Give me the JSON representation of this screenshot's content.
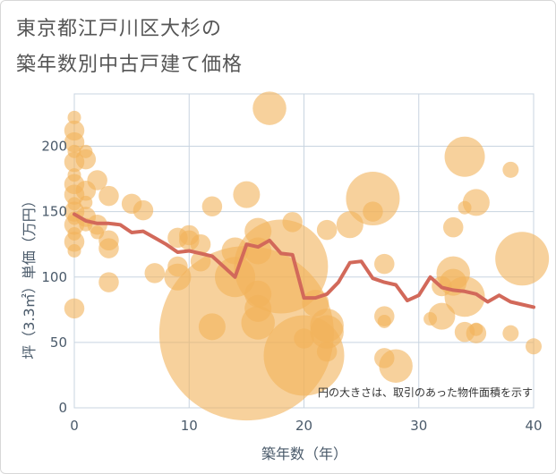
{
  "title_line1": "東京都江戸川区大杉の",
  "title_line2": "築年数別中古戸建て価格",
  "chart_data": {
    "type": "scatter",
    "title": "東京都江戸川区大杉の築年数別中古戸建て価格",
    "xlabel": "築年数（年）",
    "ylabel": "坪（3.3㎡）単価（万円）",
    "xlim": [
      0,
      40
    ],
    "ylim": [
      0,
      240
    ],
    "x_ticks": [
      0,
      10,
      20,
      30,
      40
    ],
    "y_ticks": [
      0,
      50,
      100,
      150,
      200
    ],
    "grid": true,
    "note": "円の大きさは、取引のあった物件面積を示す",
    "colors": {
      "bubble": "#f2b25a",
      "line": "#d2695a",
      "grid": "#c8d4e0",
      "text": "#4a5a6a"
    },
    "bubbles": [
      {
        "x": 0,
        "y": 222,
        "s": 1
      },
      {
        "x": 0,
        "y": 212,
        "s": 1.5
      },
      {
        "x": 0,
        "y": 203,
        "s": 1.5
      },
      {
        "x": 0,
        "y": 196,
        "s": 1
      },
      {
        "x": 0,
        "y": 188,
        "s": 1.5
      },
      {
        "x": 0,
        "y": 178,
        "s": 1
      },
      {
        "x": 0,
        "y": 171,
        "s": 1.5
      },
      {
        "x": 0,
        "y": 163,
        "s": 1.5
      },
      {
        "x": 0,
        "y": 156,
        "s": 1
      },
      {
        "x": 0,
        "y": 150,
        "s": 1.5
      },
      {
        "x": 0,
        "y": 145,
        "s": 1
      },
      {
        "x": 0,
        "y": 140,
        "s": 1.5
      },
      {
        "x": 0,
        "y": 133,
        "s": 1
      },
      {
        "x": 0,
        "y": 127,
        "s": 1.5
      },
      {
        "x": 0,
        "y": 120,
        "s": 1
      },
      {
        "x": 0,
        "y": 76,
        "s": 1.5
      },
      {
        "x": 1,
        "y": 196,
        "s": 1
      },
      {
        "x": 1,
        "y": 190,
        "s": 1.5
      },
      {
        "x": 1,
        "y": 166,
        "s": 1.5
      },
      {
        "x": 1,
        "y": 157,
        "s": 1
      },
      {
        "x": 1,
        "y": 146,
        "s": 1.5
      },
      {
        "x": 1,
        "y": 140,
        "s": 1
      },
      {
        "x": 2,
        "y": 174,
        "s": 1.5
      },
      {
        "x": 2,
        "y": 140,
        "s": 1.5
      },
      {
        "x": 2,
        "y": 134,
        "s": 1
      },
      {
        "x": 3,
        "y": 162,
        "s": 1.5
      },
      {
        "x": 3,
        "y": 128,
        "s": 1.5
      },
      {
        "x": 3,
        "y": 122,
        "s": 1.5
      },
      {
        "x": 3,
        "y": 96,
        "s": 1.5
      },
      {
        "x": 5,
        "y": 156,
        "s": 1.5
      },
      {
        "x": 6,
        "y": 151,
        "s": 1.5
      },
      {
        "x": 7,
        "y": 103,
        "s": 1.5
      },
      {
        "x": 9,
        "y": 130,
        "s": 1.5
      },
      {
        "x": 9,
        "y": 108,
        "s": 1.5
      },
      {
        "x": 9,
        "y": 100,
        "s": 2
      },
      {
        "x": 10,
        "y": 132,
        "s": 1.5
      },
      {
        "x": 10,
        "y": 128,
        "s": 1.5
      },
      {
        "x": 11,
        "y": 125,
        "s": 1.5
      },
      {
        "x": 11,
        "y": 112,
        "s": 1.5
      },
      {
        "x": 12,
        "y": 154,
        "s": 1.5
      },
      {
        "x": 12,
        "y": 62,
        "s": 2
      },
      {
        "x": 14,
        "y": 120,
        "s": 2
      },
      {
        "x": 14,
        "y": 100,
        "s": 3
      },
      {
        "x": 15,
        "y": 163,
        "s": 2
      },
      {
        "x": 15,
        "y": 57,
        "s": 13
      },
      {
        "x": 16,
        "y": 135,
        "s": 2
      },
      {
        "x": 16,
        "y": 120,
        "s": 2
      },
      {
        "x": 16,
        "y": 87,
        "s": 2
      },
      {
        "x": 16,
        "y": 76,
        "s": 2
      },
      {
        "x": 16,
        "y": 65,
        "s": 2.5
      },
      {
        "x": 17,
        "y": 229,
        "s": 2.5
      },
      {
        "x": 18,
        "y": 108,
        "s": 7
      },
      {
        "x": 19,
        "y": 142,
        "s": 1.5
      },
      {
        "x": 20,
        "y": 53,
        "s": 1.5
      },
      {
        "x": 20,
        "y": 40,
        "s": 6
      },
      {
        "x": 21,
        "y": 80,
        "s": 2
      },
      {
        "x": 22,
        "y": 136,
        "s": 1.5
      },
      {
        "x": 22,
        "y": 63,
        "s": 2.5
      },
      {
        "x": 22,
        "y": 58,
        "s": 2.5
      },
      {
        "x": 22,
        "y": 43,
        "s": 1.5
      },
      {
        "x": 24,
        "y": 140,
        "s": 2
      },
      {
        "x": 26,
        "y": 160,
        "s": 4
      },
      {
        "x": 26,
        "y": 150,
        "s": 1.5
      },
      {
        "x": 27,
        "y": 110,
        "s": 1.5
      },
      {
        "x": 27,
        "y": 70,
        "s": 1.5
      },
      {
        "x": 27,
        "y": 66,
        "s": 1
      },
      {
        "x": 27,
        "y": 38,
        "s": 1.5
      },
      {
        "x": 28,
        "y": 32,
        "s": 2.5
      },
      {
        "x": 31,
        "y": 68,
        "s": 1
      },
      {
        "x": 32,
        "y": 93,
        "s": 1.5
      },
      {
        "x": 32,
        "y": 70,
        "s": 2
      },
      {
        "x": 33,
        "y": 138,
        "s": 1.5
      },
      {
        "x": 33,
        "y": 103,
        "s": 2.5
      },
      {
        "x": 33,
        "y": 96,
        "s": 2
      },
      {
        "x": 34,
        "y": 192,
        "s": 3
      },
      {
        "x": 34,
        "y": 153,
        "s": 1
      },
      {
        "x": 34,
        "y": 85,
        "s": 3
      },
      {
        "x": 34,
        "y": 58,
        "s": 1.5
      },
      {
        "x": 35,
        "y": 157,
        "s": 2
      },
      {
        "x": 35,
        "y": 60,
        "s": 1
      },
      {
        "x": 35,
        "y": 57,
        "s": 1.5
      },
      {
        "x": 38,
        "y": 182,
        "s": 1.2
      },
      {
        "x": 38,
        "y": 57,
        "s": 1.2
      },
      {
        "x": 39,
        "y": 114,
        "s": 4
      },
      {
        "x": 40,
        "y": 47,
        "s": 1.2
      }
    ],
    "line": {
      "x": [
        0,
        1,
        2,
        3,
        4,
        5,
        6,
        7,
        8,
        9,
        10,
        11,
        12,
        13,
        14,
        15,
        16,
        17,
        18,
        19,
        20,
        21,
        22,
        23,
        24,
        25,
        26,
        27,
        28,
        29,
        30,
        31,
        32,
        33,
        34,
        35,
        36,
        37,
        38,
        39,
        40
      ],
      "y": [
        148,
        143,
        141,
        141,
        140,
        134,
        135,
        130,
        125,
        119,
        120,
        118,
        116,
        108,
        100,
        125,
        123,
        128,
        118,
        117,
        84,
        84,
        87,
        96,
        111,
        112,
        99,
        96,
        94,
        82,
        86,
        100,
        92,
        90,
        89,
        87,
        81,
        86,
        81,
        79,
        77
      ]
    }
  }
}
